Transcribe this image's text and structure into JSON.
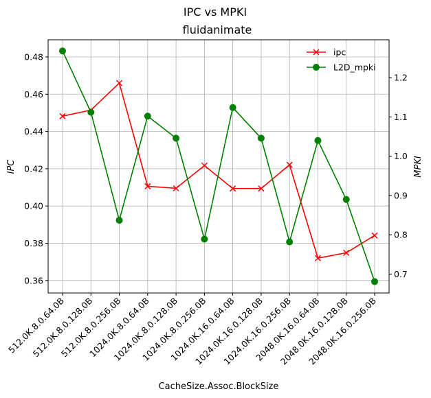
{
  "chart_data": {
    "type": "line",
    "suptitle": "IPC vs MPKI",
    "title": "fluidanimate",
    "xlabel": "CacheSize.Assoc.BlockSize",
    "ylabel_left": "IPC",
    "ylabel_right": "MPKI",
    "categories": [
      "512.0K.8.0.64.0B",
      "512.0K.8.0.128.0B",
      "512.0K.8.0.256.0B",
      "1024.0K.8.0.64.0B",
      "1024.0K.8.0.128.0B",
      "1024.0K.8.0.256.0B",
      "1024.0K.16.0.64.0B",
      "1024.0K.16.0.128.0B",
      "1024.0K.16.0.256.0B",
      "2048.0K.16.0.64.0B",
      "2048.0K.16.0.128.0B",
      "2048.0K.16.0.256.0B"
    ],
    "series": [
      {
        "name": "ipc",
        "axis": "left",
        "color": "#ff0000",
        "marker": "x",
        "values": [
          0.4482,
          0.4515,
          0.466,
          0.4106,
          0.4095,
          0.4217,
          0.4094,
          0.4094,
          0.4221,
          0.372,
          0.3749,
          0.3842
        ]
      },
      {
        "name": "L2D_mpki",
        "axis": "right",
        "color": "#008000",
        "marker": "o",
        "values": [
          1.268,
          1.112,
          0.837,
          1.102,
          1.046,
          0.789,
          1.124,
          1.046,
          0.782,
          1.04,
          0.89,
          0.681
        ]
      }
    ],
    "ylim_left": [
      0.3533,
      0.4892
    ],
    "ylim_right": [
      0.6519,
      1.2964
    ],
    "yticks_left": [
      "0.36",
      "0.38",
      "0.40",
      "0.42",
      "0.44",
      "0.46",
      "0.48"
    ],
    "yticks_right": [
      "0.7",
      "0.8",
      "0.9",
      "1.0",
      "1.1",
      "1.2"
    ],
    "grid": true,
    "legend": "top-right"
  }
}
